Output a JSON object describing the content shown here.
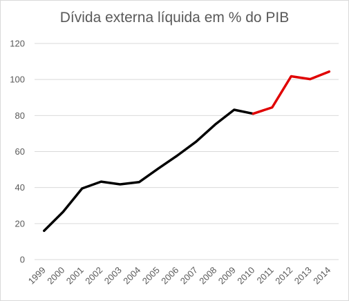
{
  "chart_data": {
    "type": "line",
    "title": "Dívida externa líquida em % do PIB",
    "xlabel": "",
    "ylabel": "",
    "categories": [
      "1999",
      "2000",
      "2001",
      "2002",
      "2003",
      "2004",
      "2005",
      "2006",
      "2007",
      "2008",
      "2009",
      "2010",
      "2011",
      "2012",
      "2013",
      "2014"
    ],
    "ylim": [
      0,
      120
    ],
    "yticks": [
      0,
      20,
      40,
      60,
      80,
      100,
      120
    ],
    "grid": true,
    "legend": "none",
    "series": [
      {
        "color": "#000000",
        "x": [
          "1999",
          "2000",
          "2001",
          "2002",
          "2003",
          "2004",
          "2005",
          "2006",
          "2007",
          "2008",
          "2009",
          "2010"
        ],
        "values": [
          16,
          26.5,
          39.5,
          43.3,
          41.8,
          43,
          50.5,
          57.7,
          65.5,
          75,
          83.2,
          81
        ]
      },
      {
        "color": "#e00000",
        "x": [
          "2010",
          "2011",
          "2012",
          "2013",
          "2014"
        ],
        "values": [
          81,
          84.5,
          101.8,
          100.2,
          104.4
        ]
      }
    ]
  }
}
